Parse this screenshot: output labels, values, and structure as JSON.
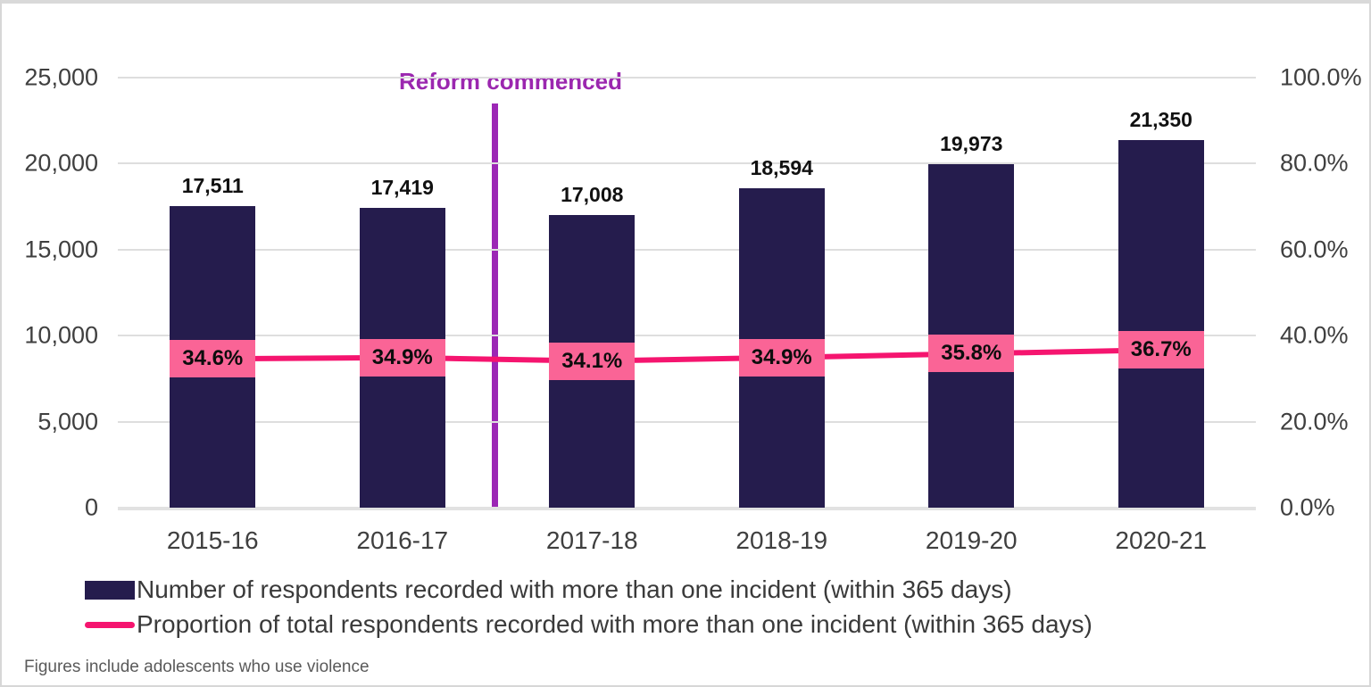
{
  "chart_data": {
    "type": "bar+line",
    "categories": [
      "2015-16",
      "2016-17",
      "2017-18",
      "2018-19",
      "2019-20",
      "2020-21"
    ],
    "series": [
      {
        "name": "Number of respondents recorded with more than one incident (within 365 days)",
        "type": "bar",
        "color": "#251c4d",
        "values": [
          17511,
          17419,
          17008,
          18594,
          19973,
          21350
        ],
        "labels": [
          "17,511",
          "17,419",
          "17,008",
          "18,594",
          "19,973",
          "21,350"
        ]
      },
      {
        "name": "Proportion of total respondents recorded with more than one incident (within 365 days)",
        "type": "line",
        "color": "#f5156f",
        "label_bg": "#fa6496",
        "values": [
          34.6,
          34.9,
          34.1,
          34.9,
          35.8,
          36.7
        ],
        "labels": [
          "34.6%",
          "34.9%",
          "34.1%",
          "34.9%",
          "35.8%",
          "36.7%"
        ]
      }
    ],
    "left_axis": {
      "min": 0,
      "max": 25000,
      "ticks": [
        "25,000",
        "20,000",
        "15,000",
        "10,000",
        "5,000",
        "0"
      ]
    },
    "right_axis": {
      "min": 0,
      "max": 100,
      "ticks": [
        "100.0%",
        "80.0%",
        "60.0%",
        "40.0%",
        "20.0%",
        "0.0%"
      ]
    },
    "annotation": {
      "text": "Reform commenced",
      "color": "#9b27af",
      "between_categories": [
        "2016-17",
        "2017-18"
      ]
    },
    "grid": "horizontal",
    "legend_position": "bottom-left",
    "footnote": "Figures include adolescents who use violence"
  }
}
